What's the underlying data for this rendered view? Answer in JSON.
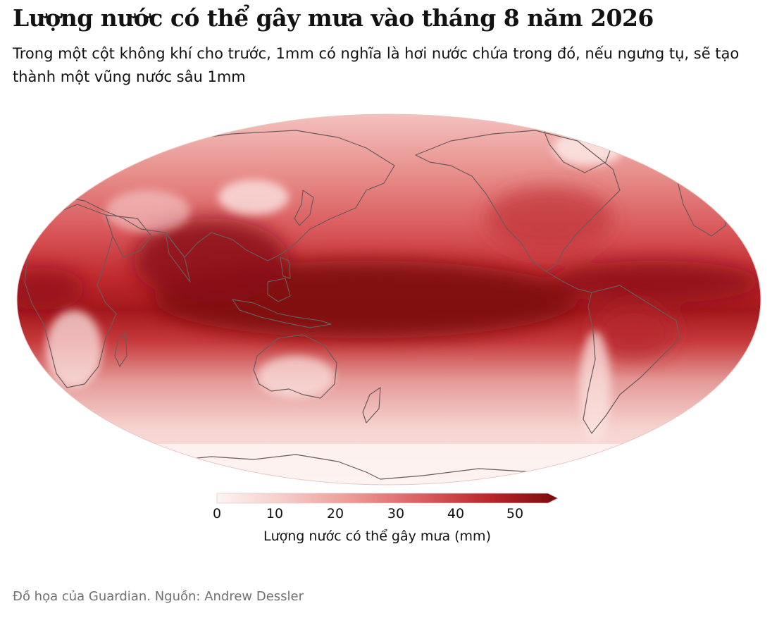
{
  "header": {
    "title": "Lượng nước có thể gây mưa vào tháng 8 năm 2026",
    "subtitle": "Trong một cột không khí cho trước, 1mm có nghĩa là hơi nước chứa trong đó, nếu ngưng tụ, sẽ tạo thành một vũng nước sâu 1mm"
  },
  "map": {
    "projection": "pacific-centered elliptical world map",
    "variable": "precipitable water",
    "palette": {
      "low": "#fdf1ee",
      "mid": "#e05a5c",
      "high": "#8a0f12"
    },
    "coastline_color": "#6a5a5a"
  },
  "legend": {
    "ticks": [
      "0",
      "10",
      "20",
      "30",
      "40",
      "50"
    ],
    "min": 0,
    "max": 55,
    "label": "Lượng nước có thể gây mưa (mm)"
  },
  "footer": {
    "source": "Đồ họa của Guardian. Nguồn: Andrew Dessler"
  }
}
